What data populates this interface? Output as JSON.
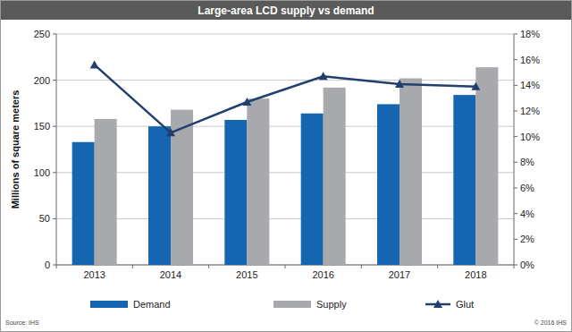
{
  "chart_data": {
    "type": "bar",
    "title": "Large-area LCD supply vs demand",
    "y_label": "Millions of square meters",
    "annotations": [
      "Source: IHS",
      "© 2016 IHS"
    ],
    "categories": [
      "2013",
      "2014",
      "2015",
      "2016",
      "2017",
      "2018"
    ],
    "series": [
      {
        "name": "Demand",
        "type": "bar",
        "color": "#1565b0",
        "values": [
          133,
          150,
          157,
          164,
          174,
          184
        ]
      },
      {
        "name": "Supply",
        "type": "bar",
        "color": "#a7a9ac",
        "values": [
          158,
          168,
          180,
          192,
          202,
          214
        ]
      },
      {
        "name": "Glut",
        "type": "line",
        "axis": "y2",
        "color": "#1f3f6e",
        "marker": "triangle",
        "line_style": "solid",
        "values": [
          15.6,
          10.3,
          12.7,
          14.7,
          14.1,
          13.9
        ]
      }
    ],
    "ylim": [
      0,
      250
    ],
    "yticks": [
      0,
      50,
      100,
      150,
      200,
      250
    ],
    "y2lim": [
      0,
      18
    ],
    "y2ticks": [
      {
        "value": 0,
        "label": "0%"
      },
      {
        "value": 2,
        "label": "2%"
      },
      {
        "value": 4,
        "label": "4%"
      },
      {
        "value": 6,
        "label": "6%"
      },
      {
        "value": 8,
        "label": "8%"
      },
      {
        "value": 10,
        "label": "10%"
      },
      {
        "value": 12,
        "label": "12%"
      },
      {
        "value": 14,
        "label": "14%"
      },
      {
        "value": 16,
        "label": "16%"
      },
      {
        "value": 18,
        "label": "18%"
      }
    ],
    "grid": true,
    "legend": "bottom"
  }
}
